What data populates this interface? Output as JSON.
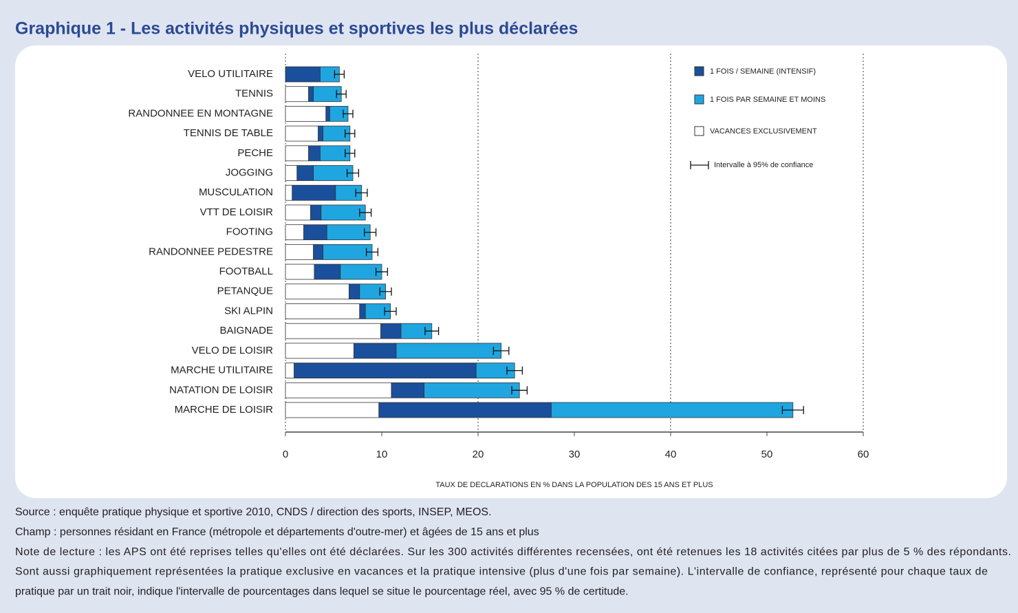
{
  "chart_data": {
    "type": "stacked-bar-horizontal",
    "title": "Graphique 1 - Les activités physiques et sportives les plus déclarées",
    "x_label": "TAUX DE DECLARATIONS EN % DANS LA POPULATION DES 15 ANS ET PLUS",
    "categories": [
      "VELO UTILITAIRE",
      "TENNIS",
      "RANDONNEE EN MONTAGNE",
      "TENNIS DE TABLE",
      "PECHE",
      "JOGGING",
      "MUSCULATION",
      "VTT DE LOISIR",
      "FOOTING",
      "RANDONNEE PEDESTRE",
      "FOOTBALL",
      "PETANQUE",
      "SKI ALPIN",
      "BAIGNADE",
      "VELO DE LOISIR",
      "MARCHE UTILITAIRE",
      "NATATION DE LOISIR",
      "MARCHE DE LOISIR"
    ],
    "series": [
      {
        "name": "VACANCES EXCLUSIVEMENT",
        "color": "#ffffff",
        "values": [
          0,
          2.4,
          4.2,
          3.4,
          2.4,
          1.2,
          0.7,
          2.6,
          1.9,
          2.9,
          3.0,
          6.6,
          7.7,
          9.9,
          7.1,
          0.9,
          11.0,
          9.7
        ]
      },
      {
        "name": "1 FOIS / SEMAINE (INTENSIF)",
        "color": "#1a4f9c",
        "values": [
          3.6,
          0.5,
          0.4,
          0.5,
          1.2,
          1.7,
          4.5,
          1.1,
          2.4,
          1.0,
          2.7,
          1.1,
          0.6,
          2.1,
          4.4,
          18.9,
          3.4,
          17.9
        ]
      },
      {
        "name": "1 FOIS PAR SEMAINE ET MOINS",
        "color": "#1fa6e0",
        "values": [
          2.0,
          2.9,
          1.9,
          2.8,
          3.1,
          4.1,
          2.7,
          4.6,
          4.5,
          5.1,
          4.3,
          2.7,
          2.6,
          3.2,
          10.9,
          4.0,
          9.9,
          25.1
        ]
      }
    ],
    "errors": [
      0.5,
      0.5,
      0.5,
      0.5,
      0.5,
      0.6,
      0.6,
      0.6,
      0.6,
      0.6,
      0.6,
      0.6,
      0.6,
      0.7,
      0.8,
      0.8,
      0.8,
      1.1
    ],
    "error_legend": "Intervalle à 95% de confiance",
    "xlim": [
      0,
      60
    ],
    "xticks": [
      0,
      10,
      20,
      30,
      40,
      50,
      60
    ],
    "xgrid": [
      20,
      40,
      60
    ],
    "legend": "top-right"
  },
  "notes": [
    "Source : enquête pratique physique et sportive 2010, CNDS / direction des sports, INSEP, MEOS.",
    "Champ : personnes résidant en France (métropole et départements d'outre-mer) et âgées de 15 ans et plus",
    "Note de lecture : les APS ont été reprises telles qu'elles ont été déclarées. Sur les 300 activités différentes recensées, ont été retenues les 18 activités citées par plus de 5 % des répondants.",
    "Sont aussi graphiquement représentées la pratique exclusive en vacances et la pratique intensive (plus d'une fois par semaine). L'intervalle de confiance, représenté pour chaque taux de",
    "pratique par un trait noir, indique l'intervalle de pourcentages dans lequel se situe le pourcentage réel, avec 95 % de certitude."
  ]
}
